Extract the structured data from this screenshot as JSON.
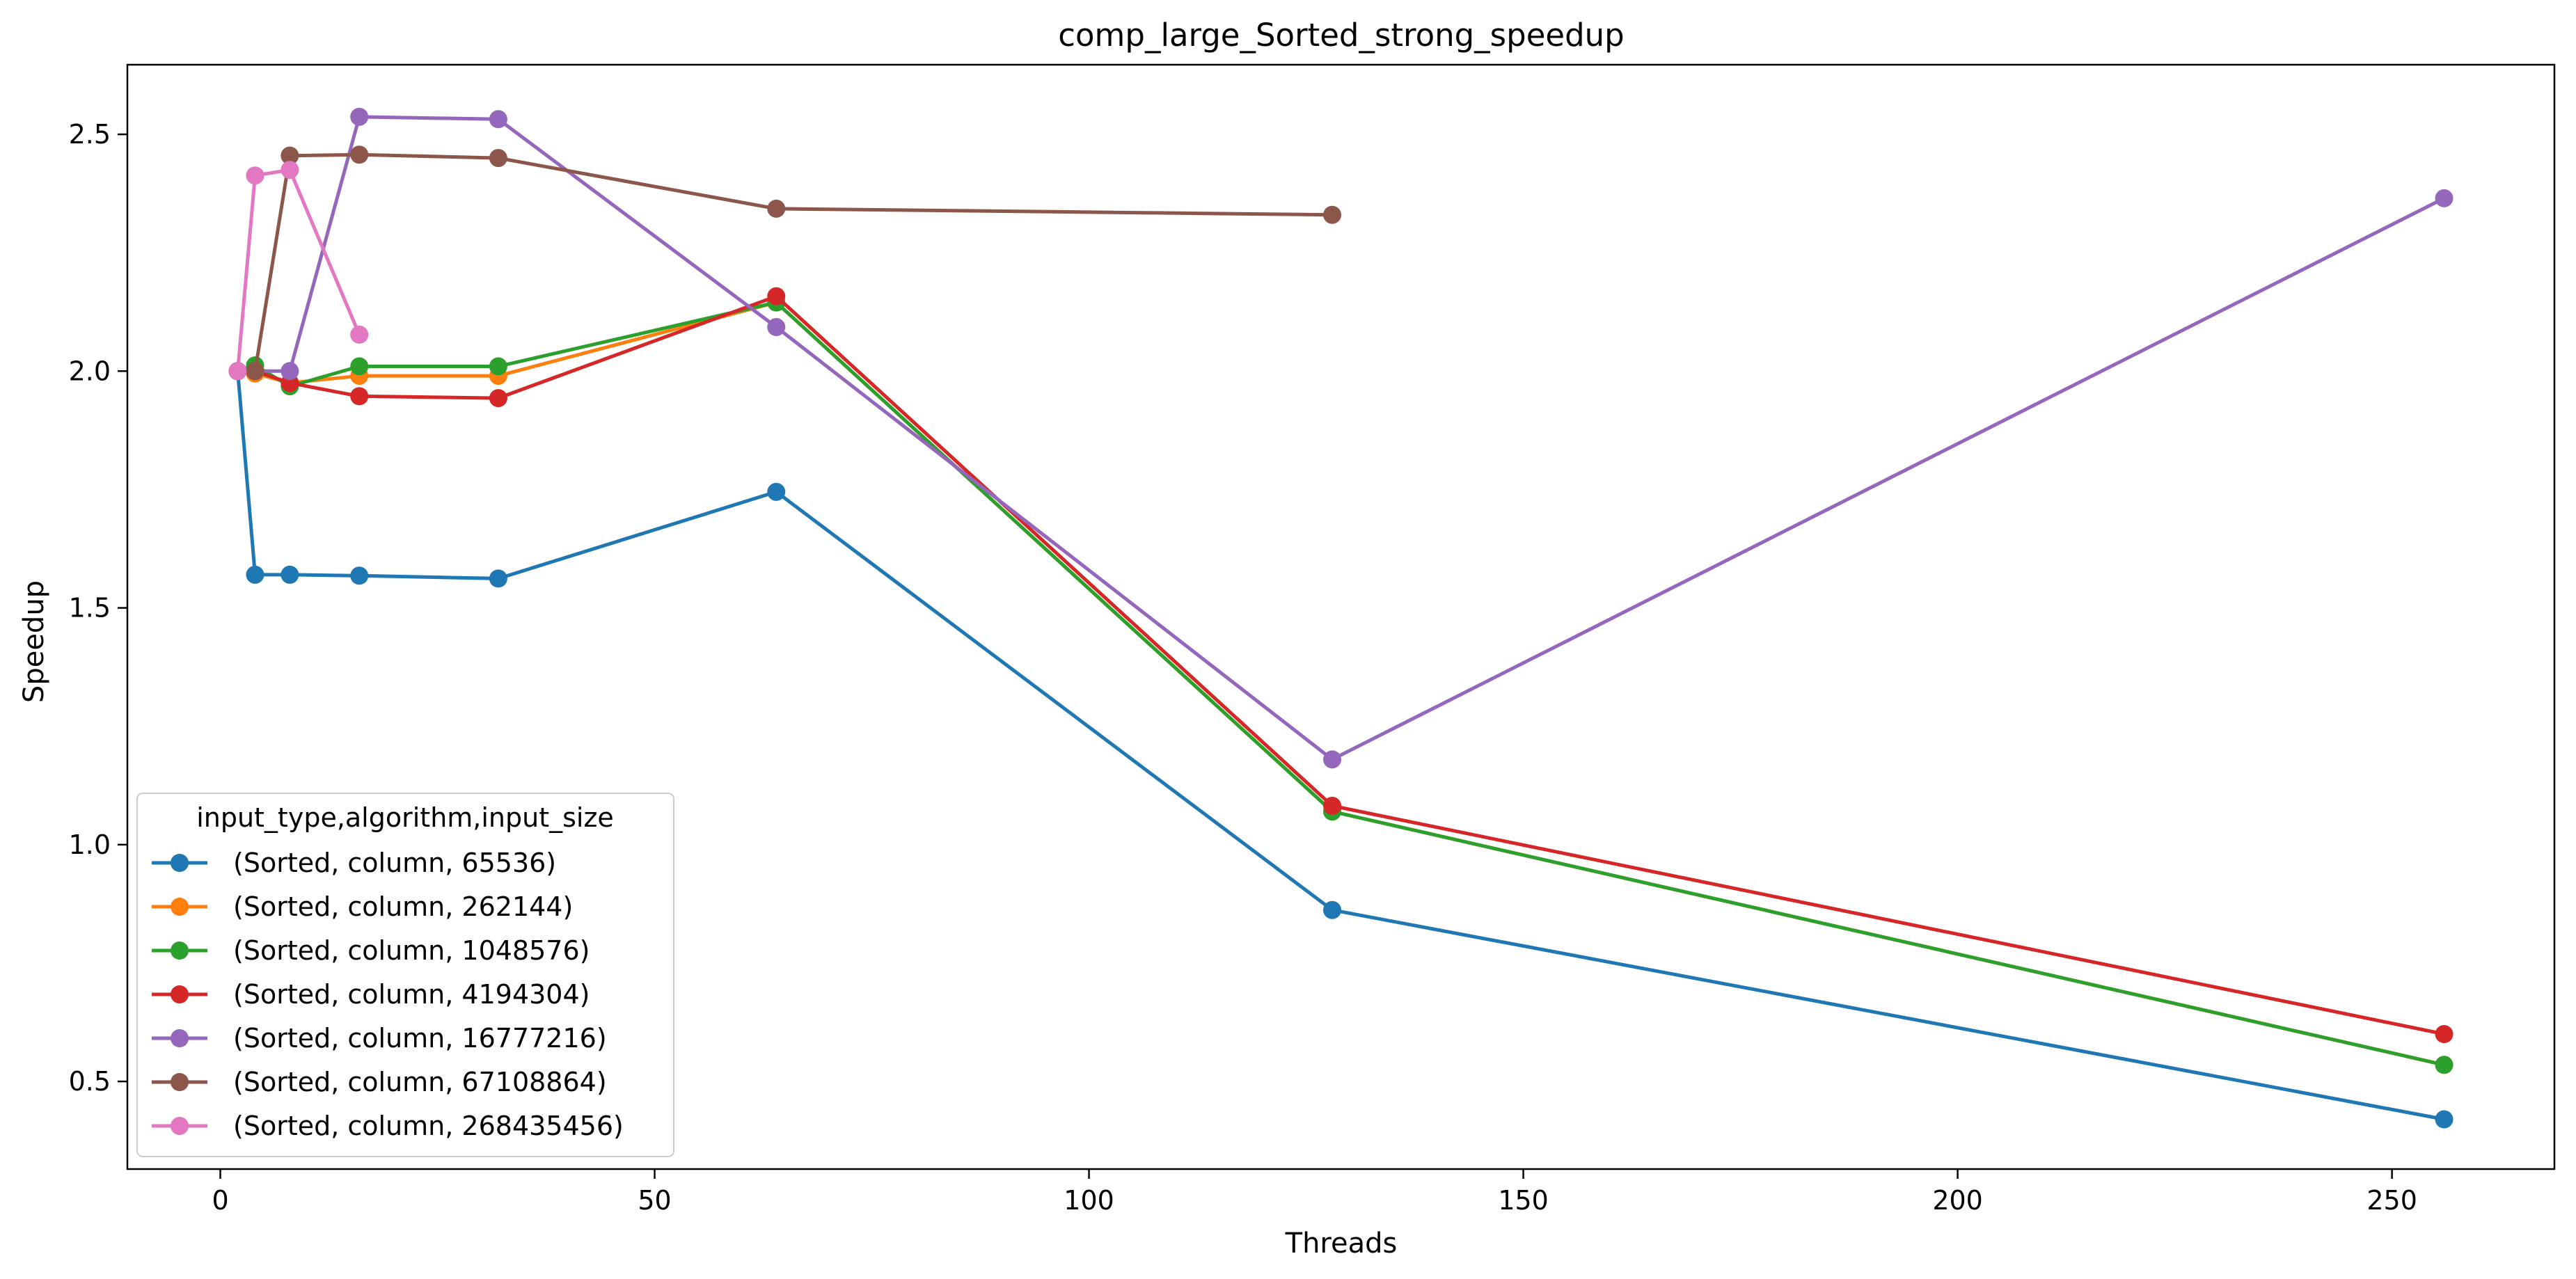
{
  "chart_data": {
    "type": "line",
    "title": "comp_large_Sorted_strong_speedup",
    "xlabel": "Threads",
    "ylabel": "Speedup",
    "xlim": [
      -10.7,
      268.7
    ],
    "ylim": [
      0.315,
      2.647
    ],
    "xticks": [
      0,
      50,
      100,
      150,
      200,
      250
    ],
    "yticks": [
      0.5,
      1.0,
      1.5,
      2.0,
      2.5
    ],
    "xtick_labels": [
      "0",
      "50",
      "100",
      "150",
      "200",
      "250"
    ],
    "ytick_labels": [
      "0.5",
      "1.0",
      "1.5",
      "2.0",
      "2.5"
    ],
    "grid": false,
    "legend": {
      "title": "input_type,algorithm,input_size",
      "location": "lower-left"
    },
    "series": [
      {
        "name": "(Sorted, column, 65536)",
        "color": "#1f77b4",
        "x": [
          2,
          4,
          8,
          16,
          32,
          64,
          128,
          256
        ],
        "y": [
          2.0,
          1.57,
          1.57,
          1.568,
          1.562,
          1.745,
          0.862,
          0.42
        ]
      },
      {
        "name": "(Sorted, column, 262144)",
        "color": "#ff7f0e",
        "x": [
          2,
          4,
          8,
          16,
          32,
          64,
          128,
          256
        ],
        "y": [
          2.0,
          1.995,
          1.975,
          1.99,
          1.99,
          2.145,
          1.07,
          0.535
        ]
      },
      {
        "name": "(Sorted, column, 1048576)",
        "color": "#2ca02c",
        "x": [
          2,
          4,
          8,
          16,
          32,
          64,
          128,
          256
        ],
        "y": [
          2.0,
          2.012,
          1.968,
          2.01,
          2.01,
          2.145,
          1.07,
          0.535
        ]
      },
      {
        "name": "(Sorted, column, 4194304)",
        "color": "#d62728",
        "x": [
          2,
          4,
          8,
          16,
          32,
          64,
          128,
          256
        ],
        "y": [
          2.0,
          2.0,
          1.975,
          1.947,
          1.943,
          2.158,
          1.082,
          0.6
        ]
      },
      {
        "name": "(Sorted, column, 16777216)",
        "color": "#9467bd",
        "x": [
          2,
          4,
          8,
          16,
          32,
          64,
          128,
          256
        ],
        "y": [
          2.0,
          2.0,
          2.0,
          2.537,
          2.532,
          2.093,
          1.18,
          2.365
        ]
      },
      {
        "name": "(Sorted, column, 67108864)",
        "color": "#8c564b",
        "x": [
          2,
          4,
          8,
          16,
          32,
          64,
          128
        ],
        "y": [
          2.0,
          2.0,
          2.455,
          2.457,
          2.45,
          2.343,
          2.33
        ]
      },
      {
        "name": "(Sorted, column, 268435456)",
        "color": "#e377c2",
        "x": [
          2,
          4,
          8,
          16
        ],
        "y": [
          2.0,
          2.413,
          2.425,
          2.077
        ]
      }
    ]
  }
}
